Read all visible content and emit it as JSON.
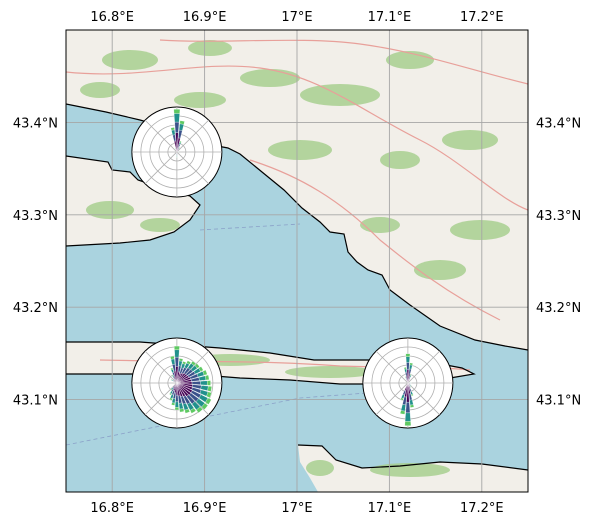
{
  "map": {
    "extent": {
      "lon": [
        16.75,
        17.25
      ],
      "lat": [
        43.0,
        43.5
      ]
    },
    "gridlines": true,
    "colors": {
      "sea": "#aad3df",
      "land": "#f2efe9",
      "vegetation": "#a8cf8f",
      "coast": "#000000",
      "grid": "#a6a6a6",
      "road": "#e8a09a"
    },
    "lon_ticks": [
      {
        "value": 16.8,
        "label": "16.8°E"
      },
      {
        "value": 16.9,
        "label": "16.9°E"
      },
      {
        "value": 17.0,
        "label": "17°E"
      },
      {
        "value": 17.1,
        "label": "17.1°E"
      },
      {
        "value": 17.2,
        "label": "17.2°E"
      }
    ],
    "lat_ticks": [
      {
        "value": 43.4,
        "label": "43.4°N"
      },
      {
        "value": 43.3,
        "label": "43.3°N"
      },
      {
        "value": 43.2,
        "label": "43.2°N"
      },
      {
        "value": 43.1,
        "label": "43.1°N"
      }
    ]
  },
  "chart_data": {
    "type": "windrose-insets-on-map",
    "colormap": [
      "#440154",
      "#3b528b",
      "#21918c",
      "#5ec962"
    ],
    "roses": [
      {
        "lon": 16.87,
        "lat": 43.368,
        "sectors": [
          [
            0,
            0.95
          ],
          [
            10,
            0.7
          ],
          [
            20,
            0.25
          ],
          [
            30,
            0.12
          ],
          [
            90,
            0.05
          ],
          [
            180,
            0.12
          ],
          [
            190,
            0.08
          ],
          [
            340,
            0.1
          ],
          [
            350,
            0.55
          ]
        ]
      },
      {
        "lon": 16.87,
        "lat": 43.118,
        "sectors": [
          [
            0,
            0.82
          ],
          [
            10,
            0.55
          ],
          [
            20,
            0.5
          ],
          [
            30,
            0.55
          ],
          [
            40,
            0.6
          ],
          [
            50,
            0.62
          ],
          [
            60,
            0.65
          ],
          [
            70,
            0.7
          ],
          [
            80,
            0.72
          ],
          [
            90,
            0.75
          ],
          [
            100,
            0.78
          ],
          [
            110,
            0.8
          ],
          [
            120,
            0.85
          ],
          [
            130,
            0.85
          ],
          [
            140,
            0.82
          ],
          [
            150,
            0.75
          ],
          [
            160,
            0.7
          ],
          [
            170,
            0.65
          ],
          [
            180,
            0.6
          ],
          [
            190,
            0.5
          ],
          [
            200,
            0.4
          ],
          [
            210,
            0.3
          ],
          [
            220,
            0.2
          ],
          [
            300,
            0.15
          ],
          [
            330,
            0.2
          ],
          [
            340,
            0.35
          ],
          [
            350,
            0.6
          ]
        ]
      },
      {
        "lon": 17.12,
        "lat": 43.118,
        "sectors": [
          [
            0,
            0.65
          ],
          [
            10,
            0.45
          ],
          [
            20,
            0.2
          ],
          [
            90,
            0.08
          ],
          [
            130,
            0.1
          ],
          [
            150,
            0.12
          ],
          [
            160,
            0.3
          ],
          [
            170,
            0.55
          ],
          [
            180,
            0.95
          ],
          [
            190,
            0.7
          ],
          [
            200,
            0.4
          ],
          [
            340,
            0.15
          ],
          [
            350,
            0.35
          ]
        ]
      }
    ]
  }
}
